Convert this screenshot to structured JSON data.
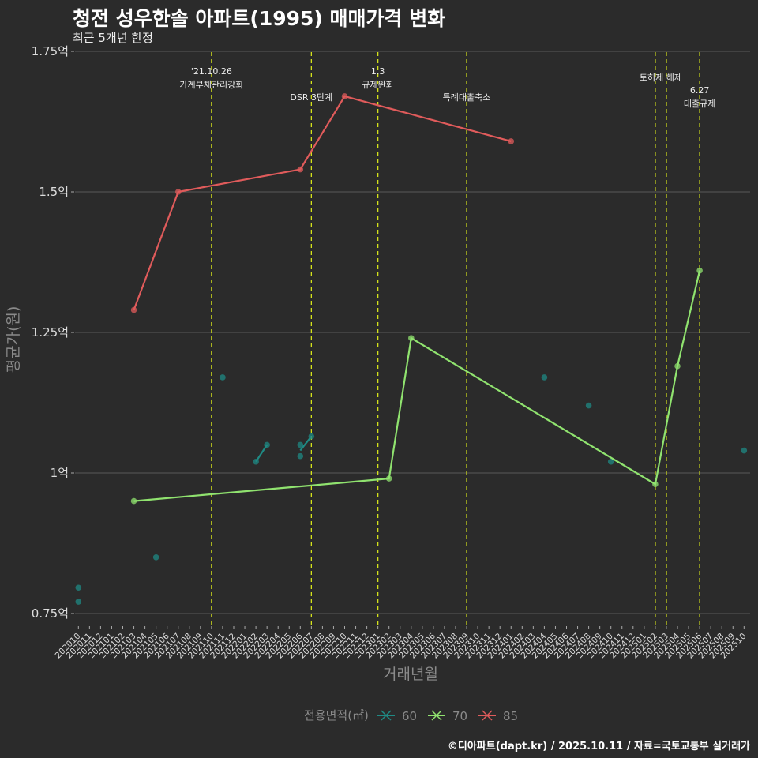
{
  "title": "청전 성우한솔 아파트(1995) 매매가격 변화",
  "subtitle": "최근 5개년 한정",
  "caption": "©디아파트(dapt.kr) / 2025.10.11 / 자료=국토교통부 실거래가",
  "chart_data": {
    "type": "line",
    "title": "청전 성우한솔 아파트(1995) 매매가격 변화",
    "xlabel": "거래년월",
    "ylabel": "평균가(원)",
    "ylim": [
      0.75,
      1.75
    ],
    "yticks": [
      {
        "v": 0.75,
        "label": "0.75억"
      },
      {
        "v": 1.0,
        "label": "1억"
      },
      {
        "v": 1.25,
        "label": "1.25억"
      },
      {
        "v": 1.5,
        "label": "1.5억"
      },
      {
        "v": 1.75,
        "label": "1.75억"
      }
    ],
    "x": [
      "202010",
      "202011",
      "202012",
      "202101",
      "202102",
      "202103",
      "202104",
      "202105",
      "202106",
      "202107",
      "202108",
      "202109",
      "202110",
      "202111",
      "202112",
      "202201",
      "202202",
      "202203",
      "202204",
      "202205",
      "202206",
      "202207",
      "202208",
      "202209",
      "202210",
      "202211",
      "202212",
      "202301",
      "202302",
      "202303",
      "202304",
      "202305",
      "202306",
      "202307",
      "202308",
      "202309",
      "202310",
      "202311",
      "202312",
      "202401",
      "202402",
      "202403",
      "202404",
      "202405",
      "202406",
      "202407",
      "202408",
      "202409",
      "202410",
      "202411",
      "202412",
      "202501",
      "202502",
      "202503",
      "202504",
      "202505",
      "202506",
      "202507",
      "202508",
      "202509",
      "202510"
    ],
    "legend": {
      "title": "전용면적(㎡)",
      "placement": "bottom"
    },
    "series": [
      {
        "name": "60",
        "color": "#1f8a84",
        "points": [
          [
            "202010",
            0.796
          ],
          [
            "202010",
            0.771
          ],
          [
            "202105",
            0.85
          ],
          [
            "202111",
            1.17
          ],
          [
            "202202",
            1.02
          ],
          [
            "202203",
            1.05
          ],
          [
            "202206",
            1.05
          ],
          [
            "202206",
            1.03
          ],
          [
            "202207",
            1.065
          ],
          [
            "202404",
            1.17
          ],
          [
            "202408",
            1.12
          ],
          [
            "202410",
            1.02
          ],
          [
            "202510",
            1.04
          ]
        ],
        "lines": [
          [
            [
              "202202",
              1.02
            ],
            [
              "202203",
              1.05
            ]
          ],
          [
            [
              "202206",
              1.04
            ],
            [
              "202207",
              1.065
            ]
          ]
        ]
      },
      {
        "name": "70",
        "color": "#90e36f",
        "points": [
          [
            "202103",
            0.95
          ],
          [
            "202302",
            0.99
          ],
          [
            "202304",
            1.24
          ],
          [
            "202502",
            0.98
          ],
          [
            "202504",
            1.19
          ],
          [
            "202506",
            1.36
          ]
        ],
        "lines": [
          [
            [
              "202103",
              0.95
            ],
            [
              "202302",
              0.99
            ],
            [
              "202304",
              1.24
            ],
            [
              "202502",
              0.98
            ],
            [
              "202504",
              1.19
            ],
            [
              "202506",
              1.36
            ]
          ]
        ]
      },
      {
        "name": "85",
        "color": "#e05b5b",
        "points": [
          [
            "202103",
            1.29
          ],
          [
            "202107",
            1.5
          ],
          [
            "202206",
            1.54
          ],
          [
            "202210",
            1.67
          ],
          [
            "202401",
            1.59
          ]
        ],
        "lines": [
          [
            [
              "202103",
              1.29
            ],
            [
              "202107",
              1.5
            ],
            [
              "202206",
              1.54
            ],
            [
              "202210",
              1.67
            ],
            [
              "202401",
              1.59
            ]
          ]
        ]
      }
    ],
    "annotations": [
      {
        "x": "202110",
        "lines": [
          "'21.10.26",
          "가계부채관리강화"
        ]
      },
      {
        "x": "202207",
        "lines": [
          "DSR 3단계"
        ]
      },
      {
        "x": "202301",
        "lines": [
          "1.3",
          "규제완화"
        ]
      },
      {
        "x": "202309",
        "lines": [
          "특례대출축소"
        ]
      },
      {
        "x": "202502",
        "lines": []
      },
      {
        "x": "202503",
        "lines": [
          "토허제 해제"
        ]
      },
      {
        "x": "202506",
        "lines": [
          "6.27",
          "대출규제"
        ]
      }
    ],
    "vline_color": "#d4e21a",
    "grid": true
  }
}
